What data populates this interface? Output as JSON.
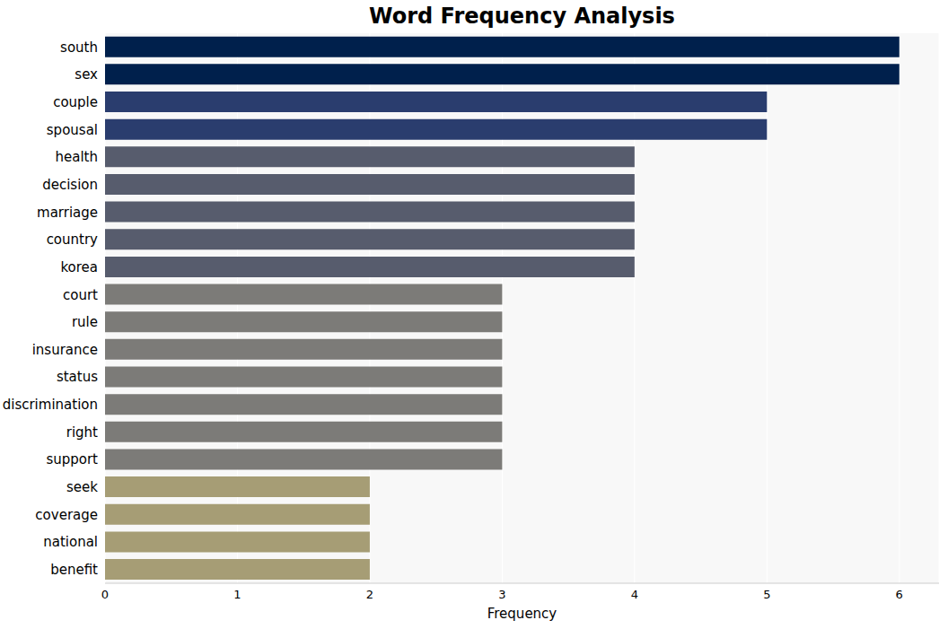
{
  "chart_data": {
    "type": "bar",
    "title": "Word Frequency Analysis",
    "orientation": "horizontal",
    "x_label": "Frequency",
    "categories": [
      "south",
      "sex",
      "couple",
      "spousal",
      "health",
      "decision",
      "marriage",
      "country",
      "korea",
      "court",
      "rule",
      "insurance",
      "status",
      "discrimination",
      "right",
      "support",
      "seek",
      "coverage",
      "national",
      "benefit"
    ],
    "values": [
      6,
      6,
      5,
      5,
      4,
      4,
      4,
      4,
      4,
      3,
      3,
      3,
      3,
      3,
      3,
      3,
      2,
      2,
      2,
      2
    ],
    "colors": [
      "#00204c",
      "#00204c",
      "#2a3d6e",
      "#2a3d6e",
      "#575c6d",
      "#575c6d",
      "#575c6d",
      "#575c6d",
      "#575c6d",
      "#7c7b78",
      "#7c7b78",
      "#7c7b78",
      "#7c7b78",
      "#7c7b78",
      "#7c7b78",
      "#7c7b78",
      "#a69d75",
      "#a69d75",
      "#a69d75",
      "#a69d75"
    ],
    "xlim": [
      0,
      6.3
    ],
    "xticks": [
      0,
      1,
      2,
      3,
      4,
      5,
      6
    ],
    "grid": true
  }
}
